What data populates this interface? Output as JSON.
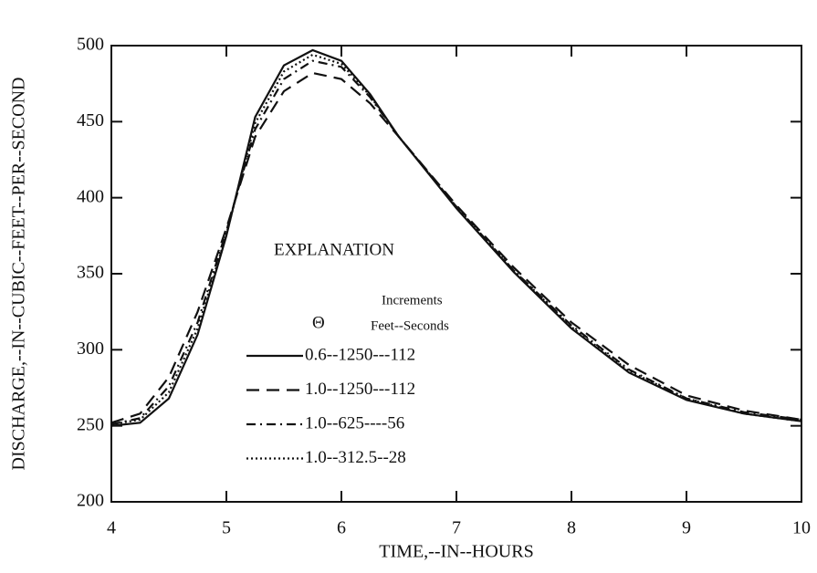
{
  "chart_data": {
    "type": "line",
    "x_label": "TIME,--IN--HOURS",
    "y_label": "DISCHARGE,--IN--CUBIC--FEET--PER--SECOND",
    "x": [
      4,
      4.25,
      4.5,
      4.75,
      5,
      5.25,
      5.5,
      5.75,
      6,
      6.25,
      6.5,
      7,
      7.5,
      8,
      8.5,
      9,
      9.5,
      10
    ],
    "series": [
      {
        "name": "0.6--1250---112",
        "color": "#111111",
        "dash": "solid",
        "values": [
          250,
          252,
          268,
          310,
          375,
          453,
          487,
          497,
          490,
          468,
          440,
          393,
          351,
          314,
          285,
          267,
          258,
          253
        ]
      },
      {
        "name": "1.0--1250---112",
        "color": "#111111",
        "dash": "dashed",
        "values": [
          252,
          258,
          282,
          325,
          380,
          440,
          470,
          482,
          478,
          462,
          440,
          395,
          354,
          318,
          290,
          270,
          260,
          254
        ]
      },
      {
        "name": "1.0--625----56",
        "color": "#111111",
        "dash": "dashdot",
        "values": [
          251,
          255,
          276,
          318,
          378,
          445,
          478,
          490,
          486,
          466,
          440,
          394,
          352,
          316,
          287,
          268,
          259,
          254
        ]
      },
      {
        "name": "1.0--312.5--28",
        "color": "#111111",
        "dash": "dotted",
        "values": [
          251,
          254,
          272,
          314,
          376,
          449,
          483,
          494,
          488,
          467,
          440,
          394,
          352,
          315,
          286,
          268,
          258,
          253
        ]
      }
    ],
    "legend": {
      "title": "EXPLANATION",
      "header": "Increments",
      "symbol": "Θ",
      "subheader": "Feet--Seconds"
    },
    "xlim": [
      4,
      10
    ],
    "xticks": [
      4,
      5,
      6,
      7,
      8,
      9,
      10
    ],
    "ylim": [
      200,
      500
    ],
    "yticks": [
      200,
      250,
      300,
      350,
      400,
      450,
      500
    ],
    "grid": false
  }
}
